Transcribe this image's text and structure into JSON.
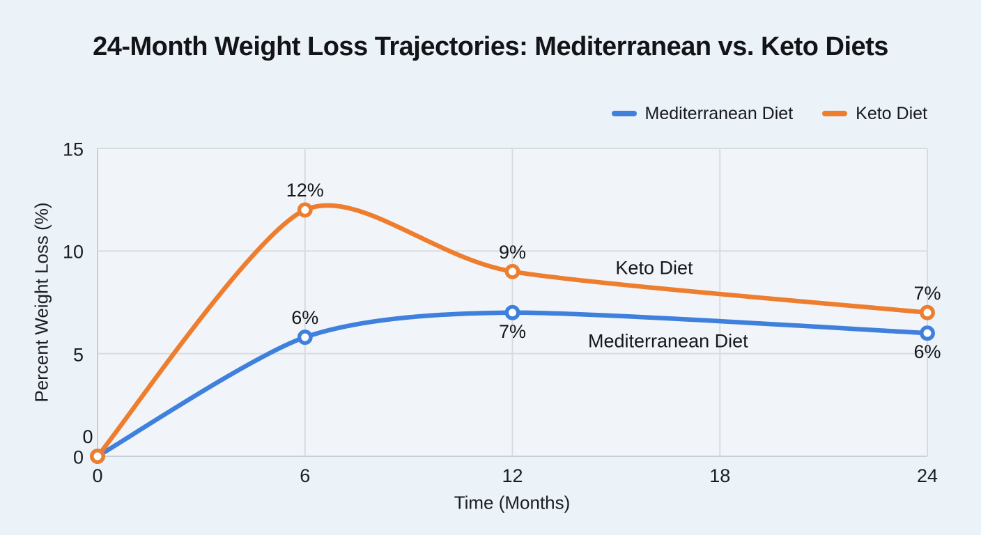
{
  "page": {
    "background": "#ebf2f8",
    "plot_background": "#f1f5f9"
  },
  "title": {
    "text": "24-Month Weight Loss Trajectories: Mediterranean vs. Keto Diets"
  },
  "legend": {
    "position": "top-right",
    "items": [
      {
        "label": "Mediterranean Diet",
        "color": "#4080dd"
      },
      {
        "label": "Keto Diet",
        "color": "#ee7d2e"
      }
    ]
  },
  "chart_data": {
    "type": "line",
    "title": "24-Month Weight Loss Trajectories: Mediterranean vs. Keto Diets",
    "xlabel": "Time (Months)",
    "ylabel": "Percent Weight Loss (%)",
    "x": [
      0,
      6,
      12,
      24
    ],
    "xlim": [
      0,
      24
    ],
    "ylim": [
      0,
      15
    ],
    "xticks": [
      "0",
      "6",
      "12",
      "18",
      "24"
    ],
    "xtick_values": [
      0,
      6,
      12,
      18,
      24
    ],
    "yticks": [
      "0",
      "5",
      "10",
      "15"
    ],
    "ytick_values": [
      0,
      5,
      10,
      15
    ],
    "grid": true,
    "smooth": true,
    "series": [
      {
        "name": "Mediterranean Diet",
        "color": "#4080dd",
        "values": [
          0,
          5.8,
          7,
          6
        ],
        "point_labels": [
          "",
          "6%",
          "7%",
          "6%"
        ],
        "label_side": [
          "above",
          "above",
          "below",
          "below"
        ],
        "label_dx": [
          0,
          0,
          0,
          0
        ]
      },
      {
        "name": "Keto Diet",
        "color": "#ee7d2e",
        "values": [
          0,
          12,
          9,
          7
        ],
        "point_labels": [
          "0",
          "12%",
          "9%",
          "7%"
        ],
        "label_side": [
          "above",
          "above",
          "above",
          "above"
        ],
        "label_dx": [
          -14,
          0,
          0,
          0
        ]
      }
    ],
    "annotations": [
      {
        "text": "Keto Diet",
        "x": 16.1,
        "y": 9.15
      },
      {
        "text": "Mediterranean Diet",
        "x": 16.5,
        "y": 5.6
      }
    ],
    "colors": {
      "grid": "#d8dce1",
      "axis": "#c9cfd6",
      "marker_fill": "#ffffff",
      "text": "#1b1d21"
    }
  }
}
